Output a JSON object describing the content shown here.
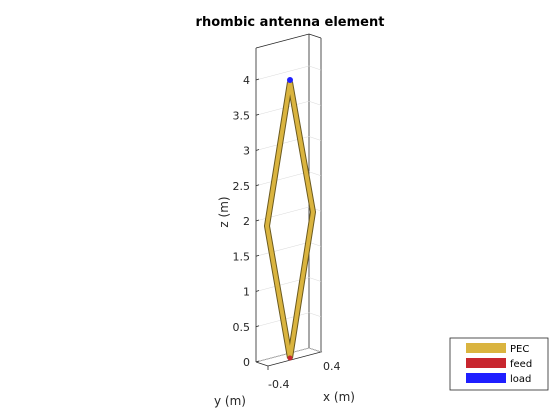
{
  "figure": {
    "title": "rhombic antenna element",
    "z_axis": {
      "label": "z (m)",
      "ticks": [
        "0",
        "0.5",
        "1",
        "1.5",
        "2",
        "2.5",
        "3",
        "3.5",
        "4"
      ]
    },
    "x_axis": {
      "label": "x (m)",
      "tick": "0.4"
    },
    "y_axis": {
      "label": "y (m)",
      "tick": "-0.4"
    }
  },
  "legend": [
    {
      "label": "PEC",
      "color": "#DAB43F"
    },
    {
      "label": "feed",
      "color": "#C8262E"
    },
    {
      "label": "load",
      "color": "#1F1FFF"
    }
  ],
  "colors": {
    "conductor": "#DAB43F",
    "feed": "#C8262E",
    "load": "#1F1FFF"
  }
}
